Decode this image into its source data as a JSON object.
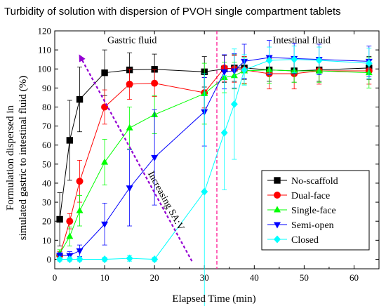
{
  "chart_data": {
    "type": "line",
    "title": "Turbidity of solution with dispersion of PVOH single compartment tablets",
    "xlabel": "Elapsed Time (min)",
    "ylabel_line1": "Formulation dispersed in",
    "ylabel_line2": "simulated gastric to intestinal fluid (%)",
    "xlim": [
      0,
      65
    ],
    "ylim": [
      -5,
      120
    ],
    "xticks": [
      0,
      10,
      20,
      30,
      40,
      50,
      60
    ],
    "yticks": [
      0,
      10,
      20,
      30,
      40,
      50,
      60,
      70,
      80,
      90,
      100,
      110,
      120
    ],
    "region_labels": [
      "Gastric fluid",
      "Intestinal fluid"
    ],
    "phase_boundary_x": 32.5,
    "annotation": "Increasing SA:V",
    "annotation_arrow": {
      "from": [
        27.5,
        -1
      ],
      "to": [
        5,
        107
      ]
    },
    "legend_position": "right-center",
    "series": [
      {
        "name": "No-scaffold",
        "color": "#000000",
        "marker": "square",
        "x": [
          1,
          3,
          5,
          10,
          15,
          20,
          30,
          34,
          36,
          38,
          43,
          48,
          53,
          63
        ],
        "y": [
          21,
          62.5,
          84,
          98,
          99.5,
          99.8,
          98.5,
          100,
          100.5,
          100.5,
          99.5,
          99,
          99.5,
          100.5
        ],
        "err": [
          14,
          21,
          17,
          12,
          9,
          8,
          8,
          7,
          7,
          6,
          6,
          6,
          6,
          6
        ]
      },
      {
        "name": "Dual-face",
        "color": "#ff0000",
        "marker": "circle",
        "x": [
          1,
          3,
          5,
          10,
          15,
          20,
          30,
          34,
          36,
          38,
          43,
          48,
          53,
          63
        ],
        "y": [
          2,
          20,
          41,
          80,
          92,
          92.5,
          87.5,
          100.5,
          100,
          99.5,
          97.5,
          97.5,
          99,
          99
        ],
        "err": [
          2,
          4,
          11,
          9,
          8,
          7,
          8,
          7,
          7,
          7,
          8,
          8,
          7,
          7
        ]
      },
      {
        "name": "Single-face",
        "color": "#00ff00",
        "marker": "triangle-up",
        "x": [
          1,
          3,
          5,
          10,
          15,
          20,
          30,
          34,
          36,
          38,
          43,
          48,
          53,
          63
        ],
        "y": [
          3,
          12,
          25.5,
          51,
          69,
          76,
          87,
          95.5,
          96.5,
          99,
          99.5,
          99,
          99,
          98
        ],
        "err": [
          2,
          5,
          8,
          12,
          11,
          10,
          16,
          8,
          7,
          7,
          7,
          6,
          6,
          8
        ]
      },
      {
        "name": "Semi-open",
        "color": "#0000ff",
        "marker": "triangle-down",
        "x": [
          1,
          3,
          5,
          10,
          15,
          20,
          30,
          34,
          36,
          38,
          43,
          48,
          53,
          63
        ],
        "y": [
          2,
          2,
          4.5,
          18.5,
          37.5,
          53.5,
          77.5,
          98.5,
          99,
          104,
          106,
          105.5,
          105,
          104
        ],
        "err": [
          1.5,
          2,
          3,
          11,
          20,
          25,
          18,
          9,
          9,
          9,
          9,
          8,
          8,
          8
        ]
      },
      {
        "name": "Closed",
        "color": "#00ffff",
        "marker": "diamond",
        "x": [
          1,
          3,
          5,
          10,
          15,
          20,
          30,
          34,
          36,
          38,
          43,
          48,
          53,
          63
        ],
        "y": [
          0,
          0,
          0,
          0,
          0.5,
          0,
          35.5,
          66.5,
          81.5,
          99.5,
          104.5,
          105,
          104.5,
          103
        ],
        "err": [
          1,
          1,
          1,
          1,
          1.5,
          1,
          62,
          30,
          29,
          8,
          7,
          7,
          7,
          8
        ]
      }
    ]
  }
}
